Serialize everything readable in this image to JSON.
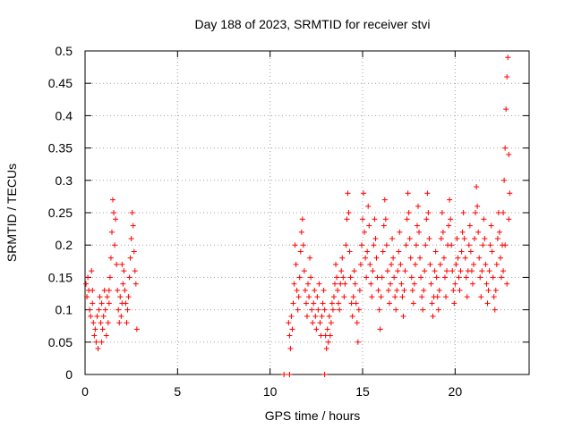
{
  "chart_data": {
    "type": "scatter",
    "title": "Day 188 of 2023, SRMTID for receiver stvi",
    "xlabel": "GPS time / hours",
    "ylabel": "SRMTID / TECUs",
    "xlim": [
      0,
      24
    ],
    "ylim": [
      0,
      0.5
    ],
    "xticks": [
      0,
      5,
      10,
      15,
      20
    ],
    "xtick_labels": [
      "0",
      "5",
      "10",
      "15",
      "20"
    ],
    "yticks": [
      0,
      0.05,
      0.1,
      0.15,
      0.2,
      0.25,
      0.3,
      0.35,
      0.4,
      0.45,
      0.5
    ],
    "ytick_labels": [
      "0",
      "0.05",
      "0.1",
      "0.15",
      "0.2",
      "0.25",
      "0.3",
      "0.35",
      "0.4",
      "0.45",
      "0.5"
    ],
    "grid": true,
    "marker": "+",
    "series": [
      {
        "name": "SRMTID",
        "color": "#ff0000",
        "points": [
          [
            0.05,
            0.14
          ],
          [
            0.1,
            0.12
          ],
          [
            0.15,
            0.15
          ],
          [
            0.2,
            0.13
          ],
          [
            0.25,
            0.1
          ],
          [
            0.3,
            0.09
          ],
          [
            0.35,
            0.16
          ],
          [
            0.4,
            0.11
          ],
          [
            0.45,
            0.08
          ],
          [
            0.5,
            0.06
          ],
          [
            0.55,
            0.07
          ],
          [
            0.6,
            0.05
          ],
          [
            0.65,
            0.09
          ],
          [
            0.7,
            0.04
          ],
          [
            0.75,
            0.1
          ],
          [
            0.8,
            0.12
          ],
          [
            0.85,
            0.08
          ],
          [
            0.9,
            0.11
          ],
          [
            0.95,
            0.07
          ],
          [
            1.0,
            0.09
          ],
          [
            1.05,
            0.13
          ],
          [
            1.1,
            0.1
          ],
          [
            1.15,
            0.06
          ],
          [
            1.2,
            0.12
          ],
          [
            1.25,
            0.08
          ],
          [
            1.3,
            0.11
          ],
          [
            1.35,
            0.15
          ],
          [
            1.4,
            0.18
          ],
          [
            1.45,
            0.22
          ],
          [
            1.5,
            0.27
          ],
          [
            1.55,
            0.25
          ],
          [
            1.6,
            0.2
          ],
          [
            1.65,
            0.24
          ],
          [
            1.7,
            0.17
          ],
          [
            1.75,
            0.13
          ],
          [
            1.8,
            0.1
          ],
          [
            1.85,
            0.08
          ],
          [
            1.9,
            0.12
          ],
          [
            1.95,
            0.09
          ],
          [
            2.0,
            0.11
          ],
          [
            2.05,
            0.14
          ],
          [
            2.1,
            0.16
          ],
          [
            2.15,
            0.13
          ],
          [
            2.2,
            0.11
          ],
          [
            2.25,
            0.08
          ],
          [
            2.3,
            0.1
          ],
          [
            2.35,
            0.12
          ],
          [
            2.4,
            0.15
          ],
          [
            2.45,
            0.18
          ],
          [
            2.5,
            0.21
          ],
          [
            2.55,
            0.25
          ],
          [
            2.6,
            0.23
          ],
          [
            2.65,
            0.19
          ],
          [
            2.7,
            0.16
          ],
          [
            2.75,
            0.14
          ],
          [
            2.8,
            0.07
          ],
          [
            0.4,
            0.13
          ],
          [
            0.9,
            0.05
          ],
          [
            1.3,
            0.13
          ],
          [
            2.0,
            0.17
          ],
          [
            10.75,
            0.0
          ],
          [
            11.05,
            0.0
          ],
          [
            12.95,
            0.0
          ],
          [
            11.0,
            0.08
          ],
          [
            11.05,
            0.06
          ],
          [
            11.1,
            0.04
          ],
          [
            11.15,
            0.09
          ],
          [
            11.2,
            0.07
          ],
          [
            11.25,
            0.11
          ],
          [
            11.3,
            0.14
          ],
          [
            11.35,
            0.2
          ],
          [
            11.4,
            0.17
          ],
          [
            11.45,
            0.13
          ],
          [
            11.5,
            0.1
          ],
          [
            11.55,
            0.12
          ],
          [
            11.6,
            0.15
          ],
          [
            11.65,
            0.19
          ],
          [
            11.7,
            0.22
          ],
          [
            11.75,
            0.24
          ],
          [
            11.8,
            0.2
          ],
          [
            11.85,
            0.16
          ],
          [
            11.9,
            0.13
          ],
          [
            11.95,
            0.11
          ],
          [
            12.0,
            0.09
          ],
          [
            12.05,
            0.14
          ],
          [
            12.1,
            0.12
          ],
          [
            12.15,
            0.18
          ],
          [
            12.2,
            0.15
          ],
          [
            12.25,
            0.1
          ],
          [
            12.3,
            0.08
          ],
          [
            12.35,
            0.11
          ],
          [
            12.4,
            0.13
          ],
          [
            12.45,
            0.09
          ],
          [
            12.5,
            0.07
          ],
          [
            12.55,
            0.12
          ],
          [
            12.6,
            0.1
          ],
          [
            12.65,
            0.14
          ],
          [
            12.7,
            0.08
          ],
          [
            12.75,
            0.06
          ],
          [
            12.8,
            0.09
          ],
          [
            12.85,
            0.11
          ],
          [
            12.9,
            0.13
          ],
          [
            12.95,
            0.1
          ],
          [
            13.0,
            0.06
          ],
          [
            13.05,
            0.04
          ],
          [
            13.1,
            0.07
          ],
          [
            13.15,
            0.05
          ],
          [
            13.2,
            0.09
          ],
          [
            13.25,
            0.06
          ],
          [
            13.3,
            0.08
          ],
          [
            13.35,
            0.11
          ],
          [
            13.4,
            0.1
          ],
          [
            13.45,
            0.12
          ],
          [
            13.5,
            0.14
          ],
          [
            13.55,
            0.17
          ],
          [
            13.6,
            0.15
          ],
          [
            13.65,
            0.13
          ],
          [
            13.7,
            0.11
          ],
          [
            13.75,
            0.1
          ],
          [
            13.8,
            0.14
          ],
          [
            13.85,
            0.16
          ],
          [
            13.9,
            0.18
          ],
          [
            13.95,
            0.15
          ],
          [
            14.0,
            0.12
          ],
          [
            14.05,
            0.14
          ],
          [
            14.1,
            0.2
          ],
          [
            14.15,
            0.24
          ],
          [
            14.2,
            0.28
          ],
          [
            14.25,
            0.25
          ],
          [
            14.3,
            0.19
          ],
          [
            14.35,
            0.15
          ],
          [
            14.4,
            0.11
          ],
          [
            14.45,
            0.09
          ],
          [
            14.5,
            0.12
          ],
          [
            14.55,
            0.16
          ],
          [
            14.6,
            0.14
          ],
          [
            14.65,
            0.11
          ],
          [
            14.7,
            0.08
          ],
          [
            14.75,
            0.05
          ],
          [
            14.8,
            0.1
          ],
          [
            14.85,
            0.13
          ],
          [
            14.9,
            0.17
          ],
          [
            14.95,
            0.2
          ],
          [
            15.0,
            0.24
          ],
          [
            15.05,
            0.28
          ],
          [
            15.1,
            0.22
          ],
          [
            15.15,
            0.18
          ],
          [
            15.2,
            0.15
          ],
          [
            15.25,
            0.19
          ],
          [
            15.3,
            0.26
          ],
          [
            15.35,
            0.23
          ],
          [
            15.4,
            0.17
          ],
          [
            15.45,
            0.14
          ],
          [
            15.5,
            0.12
          ],
          [
            15.55,
            0.16
          ],
          [
            15.6,
            0.2
          ],
          [
            15.65,
            0.24
          ],
          [
            15.7,
            0.21
          ],
          [
            15.75,
            0.18
          ],
          [
            15.8,
            0.15
          ],
          [
            15.85,
            0.13
          ],
          [
            15.9,
            0.1
          ],
          [
            15.95,
            0.07
          ],
          [
            16.0,
            0.12
          ],
          [
            16.05,
            0.15
          ],
          [
            16.1,
            0.19
          ],
          [
            16.15,
            0.23
          ],
          [
            16.2,
            0.27
          ],
          [
            16.25,
            0.24
          ],
          [
            16.3,
            0.2
          ],
          [
            16.35,
            0.16
          ],
          [
            16.4,
            0.13
          ],
          [
            16.45,
            0.11
          ],
          [
            16.5,
            0.14
          ],
          [
            16.55,
            0.17
          ],
          [
            16.6,
            0.21
          ],
          [
            16.65,
            0.18
          ],
          [
            16.7,
            0.15
          ],
          [
            16.75,
            0.12
          ],
          [
            16.8,
            0.1
          ],
          [
            16.85,
            0.13
          ],
          [
            16.9,
            0.16
          ],
          [
            16.95,
            0.19
          ],
          [
            17.0,
            0.22
          ],
          [
            17.05,
            0.17
          ],
          [
            17.1,
            0.14
          ],
          [
            17.15,
            0.12
          ],
          [
            17.2,
            0.09
          ],
          [
            17.25,
            0.13
          ],
          [
            17.3,
            0.16
          ],
          [
            17.35,
            0.2
          ],
          [
            17.4,
            0.24
          ],
          [
            17.45,
            0.28
          ],
          [
            17.5,
            0.25
          ],
          [
            17.55,
            0.21
          ],
          [
            17.6,
            0.18
          ],
          [
            17.65,
            0.15
          ],
          [
            17.7,
            0.13
          ],
          [
            17.75,
            0.11
          ],
          [
            17.8,
            0.14
          ],
          [
            17.85,
            0.17
          ],
          [
            17.9,
            0.2
          ],
          [
            17.95,
            0.23
          ],
          [
            18.0,
            0.26
          ],
          [
            18.05,
            0.22
          ],
          [
            18.1,
            0.18
          ],
          [
            18.15,
            0.15
          ],
          [
            18.2,
            0.12
          ],
          [
            18.25,
            0.1
          ],
          [
            18.3,
            0.13
          ],
          [
            18.35,
            0.16
          ],
          [
            18.4,
            0.2
          ],
          [
            18.45,
            0.24
          ],
          [
            18.5,
            0.28
          ],
          [
            18.55,
            0.25
          ],
          [
            18.6,
            0.21
          ],
          [
            18.65,
            0.17
          ],
          [
            18.7,
            0.14
          ],
          [
            18.75,
            0.11
          ],
          [
            18.8,
            0.09
          ],
          [
            18.85,
            0.12
          ],
          [
            18.9,
            0.16
          ],
          [
            18.95,
            0.19
          ],
          [
            19.0,
            0.15
          ],
          [
            19.05,
            0.12
          ],
          [
            19.1,
            0.1
          ],
          [
            19.15,
            0.13
          ],
          [
            19.2,
            0.17
          ],
          [
            19.25,
            0.21
          ],
          [
            19.3,
            0.25
          ],
          [
            19.35,
            0.22
          ],
          [
            19.4,
            0.18
          ],
          [
            19.45,
            0.15
          ],
          [
            19.5,
            0.12
          ],
          [
            19.55,
            0.16
          ],
          [
            19.6,
            0.2
          ],
          [
            19.65,
            0.23
          ],
          [
            19.7,
            0.27
          ],
          [
            19.75,
            0.24
          ],
          [
            19.8,
            0.2
          ],
          [
            19.85,
            0.16
          ],
          [
            19.9,
            0.13
          ],
          [
            19.95,
            0.11
          ],
          [
            20.0,
            0.14
          ],
          [
            20.05,
            0.17
          ],
          [
            20.1,
            0.21
          ],
          [
            20.15,
            0.18
          ],
          [
            20.2,
            0.15
          ],
          [
            20.25,
            0.13
          ],
          [
            20.3,
            0.16
          ],
          [
            20.35,
            0.19
          ],
          [
            20.4,
            0.22
          ],
          [
            20.45,
            0.25
          ],
          [
            20.5,
            0.21
          ],
          [
            20.55,
            0.18
          ],
          [
            20.6,
            0.15
          ],
          [
            20.65,
            0.12
          ],
          [
            20.7,
            0.16
          ],
          [
            20.75,
            0.2
          ],
          [
            20.8,
            0.23
          ],
          [
            20.85,
            0.19
          ],
          [
            20.9,
            0.16
          ],
          [
            20.95,
            0.14
          ],
          [
            21.0,
            0.17
          ],
          [
            21.05,
            0.21
          ],
          [
            21.1,
            0.25
          ],
          [
            21.15,
            0.29
          ],
          [
            21.2,
            0.26
          ],
          [
            21.25,
            0.22
          ],
          [
            21.3,
            0.18
          ],
          [
            21.35,
            0.15
          ],
          [
            21.4,
            0.12
          ],
          [
            21.45,
            0.16
          ],
          [
            21.5,
            0.2
          ],
          [
            21.55,
            0.24
          ],
          [
            21.6,
            0.21
          ],
          [
            21.65,
            0.17
          ],
          [
            21.7,
            0.14
          ],
          [
            21.75,
            0.11
          ],
          [
            21.8,
            0.13
          ],
          [
            21.85,
            0.16
          ],
          [
            21.9,
            0.2
          ],
          [
            21.95,
            0.23
          ],
          [
            22.0,
            0.19
          ],
          [
            22.05,
            0.15
          ],
          [
            22.1,
            0.12
          ],
          [
            22.15,
            0.1
          ],
          [
            22.2,
            0.13
          ],
          [
            22.25,
            0.17
          ],
          [
            22.3,
            0.21
          ],
          [
            22.35,
            0.25
          ],
          [
            22.4,
            0.22
          ],
          [
            22.45,
            0.18
          ],
          [
            22.5,
            0.15
          ],
          [
            22.55,
            0.2
          ],
          [
            22.6,
            0.25
          ],
          [
            22.65,
            0.3
          ],
          [
            22.7,
            0.35
          ],
          [
            22.75,
            0.41
          ],
          [
            22.8,
            0.46
          ],
          [
            22.85,
            0.49
          ],
          [
            22.9,
            0.34
          ],
          [
            22.95,
            0.28
          ],
          [
            22.6,
            0.16
          ],
          [
            22.7,
            0.2
          ],
          [
            22.8,
            0.14
          ],
          [
            22.9,
            0.24
          ]
        ]
      }
    ]
  }
}
